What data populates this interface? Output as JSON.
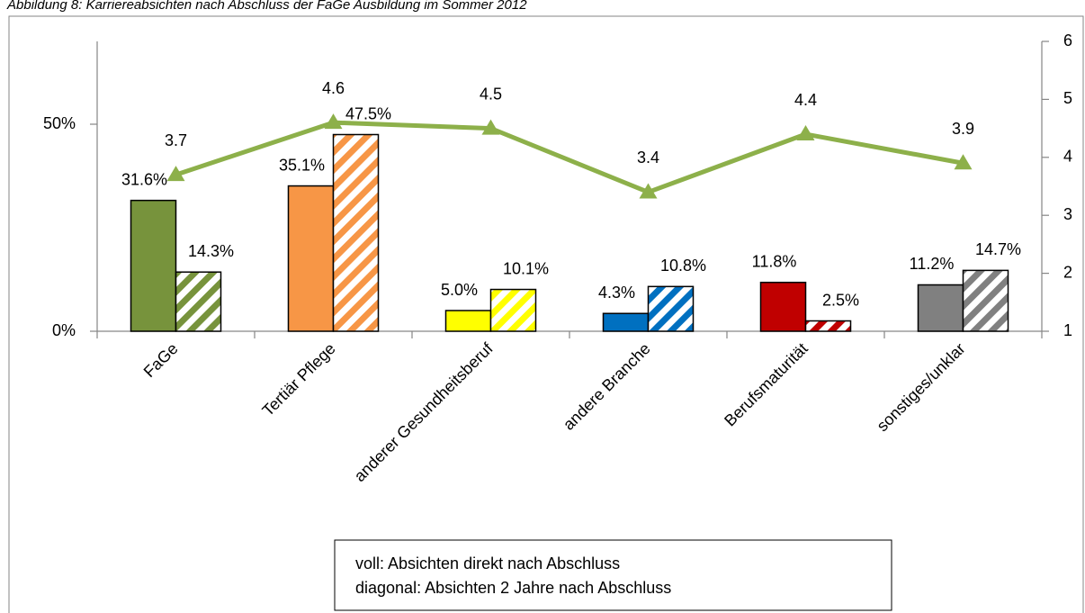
{
  "chart_data": {
    "type": "bar",
    "title": "Abbildung 8: Karriereabsichten nach Abschluss der FaGe Ausbildung im Sommer 2012",
    "categories": [
      "FaGe",
      "Tertiär Pflege",
      "anderer Gesundheitsberuf",
      "andere Branche",
      "Berufsmaturität",
      "sonstiges/unklar"
    ],
    "series": [
      {
        "pattern": "solid",
        "colors": [
          "#77933c",
          "#f79646",
          "#ffff00",
          "#0070c0",
          "#c00000",
          "#808080"
        ],
        "values": [
          31.6,
          35.1,
          5.0,
          4.3,
          11.8,
          11.2
        ],
        "value_labels": [
          "31.6%",
          "35.1%",
          "5.0%",
          "4.3%",
          "11.8%",
          "11.2%"
        ]
      },
      {
        "pattern": "diagonal",
        "colors": [
          "#77933c",
          "#f79646",
          "#ffff00",
          "#0070c0",
          "#c00000",
          "#808080"
        ],
        "values": [
          14.3,
          47.5,
          10.1,
          10.8,
          2.5,
          14.7
        ],
        "value_labels": [
          "14.3%",
          "47.5%",
          "10.1%",
          "10.8%",
          "2.5%",
          "14.7%"
        ]
      },
      {
        "type": "line",
        "axis": "y2",
        "color": "#8db04a",
        "values": [
          3.7,
          4.6,
          4.5,
          3.4,
          4.4,
          3.9
        ]
      }
    ],
    "ylim": [
      0,
      70
    ],
    "yticks": [
      {
        "value": 0,
        "label": "0%"
      },
      {
        "value": 50,
        "label": "50%"
      }
    ],
    "y2lim": [
      1,
      6
    ],
    "y2ticks": [
      1,
      2,
      3,
      4,
      5,
      6
    ],
    "note": [
      "voll: Absichten direkt nach Abschluss",
      "diagonal: Absichten 2 Jahre nach Abschluss"
    ]
  }
}
